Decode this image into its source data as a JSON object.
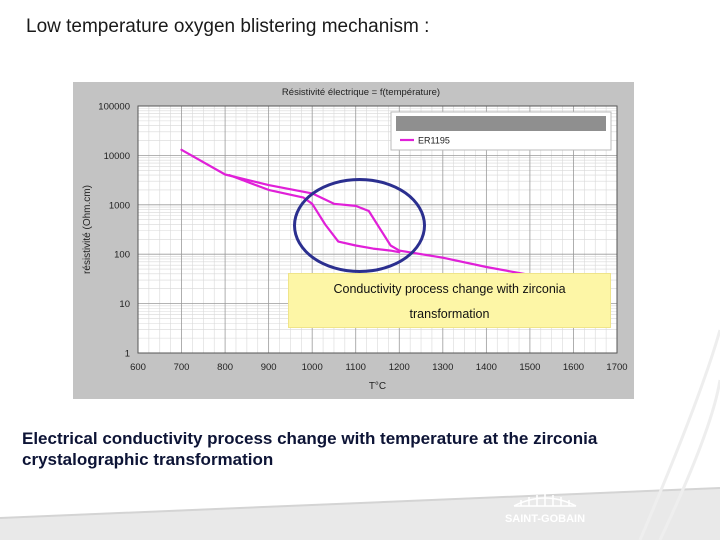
{
  "slide": {
    "title": "Low temperature oxygen blistering mechanism :",
    "caption": "Electrical conductivity process change with temperature at the zirconia crystalographic transformation"
  },
  "callout": {
    "line1": "Conductivity process change with zirconia",
    "line2": "transformation"
  },
  "logo": {
    "text": "SAINT-GOBAIN"
  },
  "colors": {
    "curve": "#e020d8",
    "ring": "#2b2f8f",
    "callout_bg": "#fdf6a6",
    "panel_bg": "#c3c3c3",
    "caption": "#0d1436"
  },
  "chart_data": {
    "type": "line",
    "title": "Résistivité électrique = f(température)",
    "xlabel": "T°C",
    "ylabel": "résistivité (Ohm.cm)",
    "xlim": [
      600,
      1700
    ],
    "ylim": [
      1,
      100000
    ],
    "yscale": "log",
    "grid": true,
    "legend_position": "top-right",
    "x_ticks": [
      "600",
      "700",
      "800",
      "900",
      "1000",
      "1100",
      "1200",
      "1300",
      "1400",
      "1500",
      "1600",
      "1700"
    ],
    "y_ticks": [
      {
        "value": 1,
        "label": "1"
      },
      {
        "value": 10,
        "label": "10"
      },
      {
        "value": 100,
        "label": "100"
      },
      {
        "value": 1000,
        "label": "1000"
      },
      {
        "value": 10000,
        "label": "10000"
      },
      {
        "value": 100000,
        "label": "100000"
      }
    ],
    "series": [
      {
        "name": "ER1195",
        "x": [
          700,
          800,
          900,
          1000,
          1050,
          1100,
          1130,
          1180,
          1200,
          1300,
          1400,
          1500,
          1550,
          1600
        ],
        "y": [
          13000,
          4100,
          2500,
          1700,
          1050,
          950,
          750,
          150,
          118,
          85,
          55,
          38,
          30,
          25
        ]
      },
      {
        "name": "",
        "x": [
          810,
          900,
          980,
          1000,
          1030,
          1060,
          1100,
          1140,
          1180,
          1200
        ],
        "y": [
          4000,
          2000,
          1400,
          1050,
          400,
          180,
          150,
          130,
          118,
          110
        ]
      }
    ]
  }
}
